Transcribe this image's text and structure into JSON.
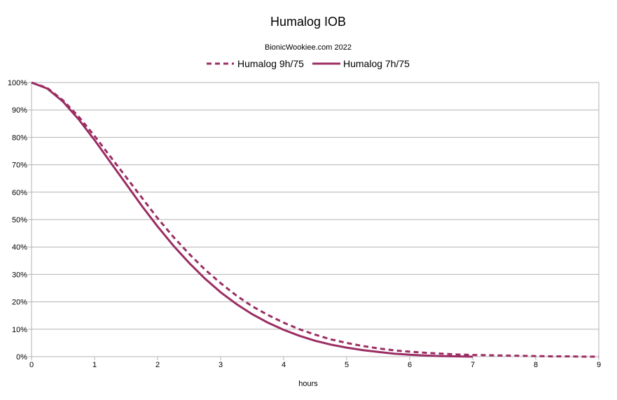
{
  "chart_data": {
    "type": "line",
    "title": "Humalog IOB",
    "subtitle": "BionicWookiee.com 2022",
    "xlabel": "hours",
    "ylabel": "",
    "xlim": [
      0,
      9
    ],
    "ylim": [
      0,
      1
    ],
    "x_ticks": [
      0,
      1,
      2,
      3,
      4,
      5,
      6,
      7,
      8,
      9
    ],
    "y_ticks": [
      0,
      0.1,
      0.2,
      0.3,
      0.4,
      0.5,
      0.6,
      0.7,
      0.8,
      0.9,
      1.0
    ],
    "y_tick_labels": [
      "0%",
      "10%",
      "20%",
      "30%",
      "40%",
      "50%",
      "60%",
      "70%",
      "80%",
      "90%",
      "100%"
    ],
    "grid": "horizontal",
    "legend_position": "top",
    "series": [
      {
        "name": "Humalog 9h/75",
        "style": "dashed",
        "color": "#9b2d63",
        "x": [
          0,
          0.25,
          0.5,
          0.75,
          1,
          1.25,
          1.5,
          1.75,
          2,
          2.25,
          2.5,
          2.75,
          3,
          3.25,
          3.5,
          3.75,
          4,
          4.25,
          4.5,
          4.75,
          5,
          5.25,
          5.5,
          5.75,
          6,
          6.25,
          6.5,
          6.75,
          7,
          7.25,
          7.5,
          7.75,
          8,
          8.25,
          8.5,
          8.75,
          9
        ],
        "values": [
          1.0,
          0.98,
          0.935,
          0.875,
          0.805,
          0.73,
          0.655,
          0.58,
          0.505,
          0.437,
          0.375,
          0.318,
          0.268,
          0.223,
          0.184,
          0.152,
          0.124,
          0.1,
          0.08,
          0.063,
          0.05,
          0.039,
          0.03,
          0.023,
          0.018,
          0.014,
          0.011,
          0.008,
          0.006,
          0.005,
          0.004,
          0.003,
          0.002,
          0.001,
          0.001,
          0.0,
          0.0
        ]
      },
      {
        "name": "Humalog 7h/75",
        "style": "solid",
        "color": "#9b2d63",
        "x": [
          0,
          0.25,
          0.5,
          0.75,
          1,
          1.25,
          1.5,
          1.75,
          2,
          2.25,
          2.5,
          2.75,
          3,
          3.25,
          3.5,
          3.75,
          4,
          4.25,
          4.5,
          4.75,
          5,
          5.25,
          5.5,
          5.75,
          6,
          6.25,
          6.5,
          6.75,
          7
        ],
        "values": [
          1.0,
          0.978,
          0.93,
          0.865,
          0.79,
          0.71,
          0.63,
          0.55,
          0.475,
          0.405,
          0.342,
          0.285,
          0.235,
          0.192,
          0.155,
          0.124,
          0.098,
          0.076,
          0.058,
          0.044,
          0.033,
          0.024,
          0.017,
          0.011,
          0.007,
          0.004,
          0.002,
          0.001,
          0.0
        ]
      }
    ]
  }
}
